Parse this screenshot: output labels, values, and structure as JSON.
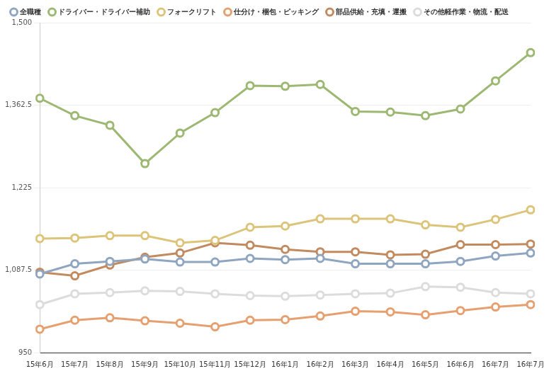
{
  "chart_data": {
    "type": "line",
    "categories": [
      "15年6月",
      "15年7月",
      "15年8月",
      "15年9月",
      "15年10月",
      "15年11月",
      "15年12月",
      "16年1月",
      "16年2月",
      "16年3月",
      "16年4月",
      "16年5月",
      "16年6月",
      "16年7月",
      "16年7月"
    ],
    "series": [
      {
        "name": "全職種",
        "color": "#8fa5c0",
        "values": [
          1081,
          1098,
          1102,
          1106,
          1101,
          1101,
          1107,
          1105,
          1107,
          1098,
          1098,
          1098,
          1102,
          1111,
          1116
        ]
      },
      {
        "name": "ドライバー・ドライバー補助",
        "color": "#9cb872",
        "values": [
          1374,
          1345,
          1329,
          1265,
          1316,
          1350,
          1395,
          1394,
          1397,
          1352,
          1351,
          1345,
          1356,
          1403,
          1450
        ]
      },
      {
        "name": "フォークリフト",
        "color": "#dcc47a",
        "values": [
          1140,
          1141,
          1145,
          1145,
          1133,
          1137,
          1159,
          1161,
          1173,
          1173,
          1173,
          1163,
          1159,
          1172,
          1188
        ]
      },
      {
        "name": "仕分け・梱包・ピッキング",
        "color": "#e6a070",
        "values": [
          989,
          1004,
          1008,
          1003,
          999,
          993,
          1004,
          1005,
          1011,
          1019,
          1018,
          1013,
          1020,
          1026,
          1030
        ]
      },
      {
        "name": "部品供給・充填・運搬",
        "color": "#c28a5f",
        "values": [
          1084,
          1078,
          1096,
          1109,
          1116,
          1133,
          1129,
          1122,
          1118,
          1118,
          1113,
          1114,
          1130,
          1130,
          1131
        ]
      },
      {
        "name": "その他軽作業・物流・配送",
        "color": "#dcdcdc",
        "values": [
          1030,
          1048,
          1050,
          1053,
          1052,
          1048,
          1045,
          1044,
          1046,
          1048,
          1049,
          1060,
          1059,
          1050,
          1048
        ]
      }
    ],
    "ylim": [
      950,
      1500
    ],
    "yticks": [
      950,
      {
        "value": 1087.5,
        "label": "1,087.5"
      },
      {
        "value": 1225,
        "label": "1,225"
      },
      {
        "value": 1362.5,
        "label": "1,362.5"
      },
      {
        "value": 1500,
        "label": "1,500"
      }
    ],
    "grid": true,
    "legend": "top",
    "marker": "circle",
    "line_style": "solid"
  }
}
